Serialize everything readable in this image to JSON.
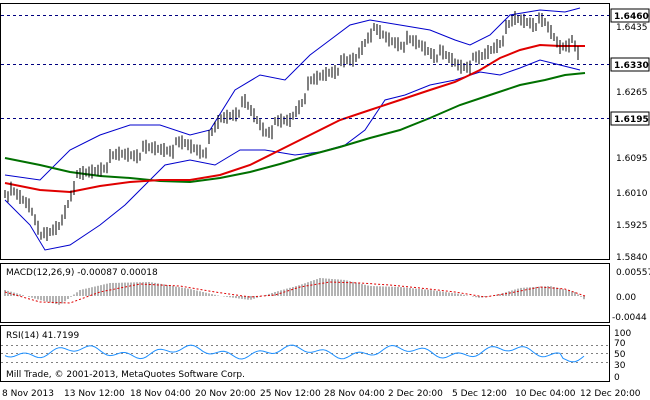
{
  "price_panel": {
    "price_labels": [
      "1.6435",
      "1.6265",
      "1.6095",
      "1.6010",
      "1.5925",
      "1.5840"
    ],
    "tags": [
      {
        "name": "resistance-level-tag",
        "value": "1.6460",
        "bg": "#ffffff"
      },
      {
        "name": "current-price-tag",
        "value": "1.6330",
        "bg": "#ffffff"
      },
      {
        "name": "support-level-tag",
        "value": "1.6195",
        "bg": "#ffffff"
      }
    ]
  },
  "macd_panel": {
    "header": "MACD(12,26,9) -0.00087 0.00018",
    "scale_labels": [
      "0.00557",
      "0.00",
      "-0.0044"
    ]
  },
  "rsi_panel": {
    "header": "RSI(14) 41.7199",
    "scale_labels": [
      "100",
      "70",
      "50",
      "30",
      "0"
    ]
  },
  "copyright": "Mill Trade, © 2001-2013, MetaQuotes Software Corp.",
  "time_axis": {
    "labels": [
      "8 Nov 2013",
      "13 Nov 12:00",
      "18 Nov 04:00",
      "20 Nov 20:00",
      "25 Nov 12:00",
      "28 Nov 04:00",
      "2 Dec 20:00",
      "5 Dec 12:00",
      "10 Dec 04:00",
      "12 Dec 20:00"
    ]
  },
  "colors": {
    "candles": "#000000",
    "bollinger": "#0000cc",
    "ma_fast": "#e00000",
    "ma_slow": "#007000",
    "macd_hist": "#b4b4b4",
    "macd_signal": "#e00000",
    "rsi_line": "#1e90ff",
    "level_line": "#000080"
  }
}
